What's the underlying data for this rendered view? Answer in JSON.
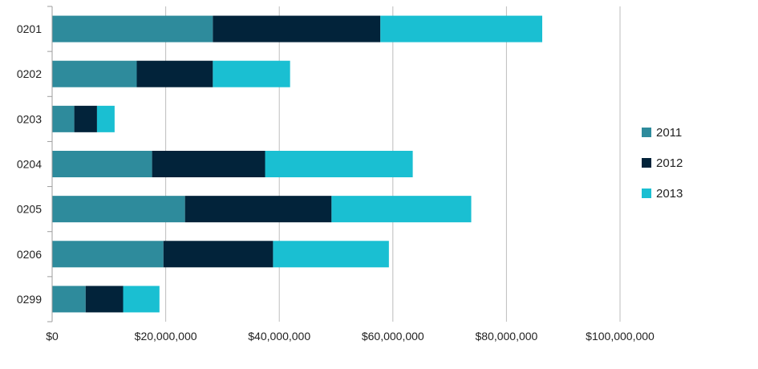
{
  "chart_data": {
    "type": "bar",
    "orientation": "horizontal",
    "stacked": true,
    "title": "",
    "xlabel": "",
    "ylabel": "",
    "xlim": [
      0,
      100000000
    ],
    "x_ticks": [
      0,
      20000000,
      40000000,
      60000000,
      80000000,
      100000000
    ],
    "x_tick_labels": [
      "$0",
      "$20,000,000",
      "$40,000,000",
      "$60,000,000",
      "$80,000,000",
      "$100,000,000"
    ],
    "grid": "vertical",
    "legend_position": "right",
    "categories": [
      "0201",
      "0202",
      "0203",
      "0204",
      "0205",
      "0206",
      "0299"
    ],
    "series": [
      {
        "name": "2011",
        "color": "#2E8B9C",
        "values": [
          28300000,
          14900000,
          3900000,
          17600000,
          23400000,
          19600000,
          5900000
        ]
      },
      {
        "name": "2012",
        "color": "#02233A",
        "values": [
          29500000,
          13400000,
          4000000,
          19900000,
          25800000,
          19300000,
          6600000
        ]
      },
      {
        "name": "2013",
        "color": "#1ABFD2",
        "values": [
          28500000,
          13600000,
          3100000,
          26000000,
          24600000,
          20400000,
          6400000
        ]
      }
    ]
  }
}
